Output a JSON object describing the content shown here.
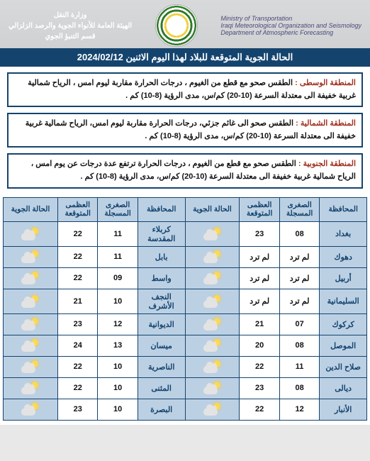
{
  "header": {
    "en_line1": "Ministry of Transportation",
    "en_line2": "Iraqi Meteorological Organization and Seismology",
    "en_line3": "Department of Atmospheric Forecasting",
    "ar_line1": "وزارة النقل",
    "ar_line2": "الهيئة العامة للأنواء الجوية والرصد الزلزالي",
    "ar_line3": "قسم التنبؤ الجوي"
  },
  "title": "الحالة الجوية المتوقعة للبلاد لهذا اليوم الاثنين  2024/02/12",
  "regions": [
    {
      "name": "المنطقة الوسطى :",
      "text": "الطقس صحو مع قطع من الغيوم ، درجات الحرارة مقاربة ليوم امس ، الرياح شمالية غربية خفيفة الى معتدلة السرعة (10-20) كم/س، مدى الرؤية (8-10) كم ."
    },
    {
      "name": "المنطقة الشمالية :",
      "text": "الطقس صحو الى غائم جزئي، درجات الحرارة مقاربة ليوم امس، الرياح شمالية غربية خفيفة الى معتدلة السرعة (10-20) كم/س، مدى الرؤية (8-10) كم ."
    },
    {
      "name": "المنطقة الجنوبية :",
      "text": "الطقس صحو مع قطع من الغيوم ، درجات الحرارة  ترتفع عدة درجات عن يوم امس ، الرياح شمالية غربية خفيفة الى معتدلة السرعة (10-20) كم/س، مدى الرؤية (8-10) كم ."
    }
  ],
  "table": {
    "headers": {
      "prov": "المحافظة",
      "min": "الصغرى المسجلة",
      "max": "العظمى المتوقعة",
      "cond": "الحالة الجوية"
    },
    "rowsA": [
      {
        "prov": "بغداد",
        "min": "08",
        "max": "23",
        "cond": "icon"
      },
      {
        "prov": "دهوك",
        "min": "لم ترد",
        "max": "لم ترد",
        "cond": "icon"
      },
      {
        "prov": "أربيل",
        "min": "لم ترد",
        "max": "لم ترد",
        "cond": "icon"
      },
      {
        "prov": "السليمانية",
        "min": "لم ترد",
        "max": "لم ترد",
        "cond": "icon"
      },
      {
        "prov": "كركوك",
        "min": "07",
        "max": "21",
        "cond": "icon"
      },
      {
        "prov": "الموصل",
        "min": "08",
        "max": "20",
        "cond": "icon"
      },
      {
        "prov": "صلاح الدين",
        "min": "11",
        "max": "22",
        "cond": "icon"
      },
      {
        "prov": "ديالى",
        "min": "08",
        "max": "23",
        "cond": "icon"
      },
      {
        "prov": "الأنبار",
        "min": "12",
        "max": "22",
        "cond": "icon"
      }
    ],
    "rowsB": [
      {
        "prov": "كربلاء المقدسة",
        "min": "11",
        "max": "22",
        "cond": "icon"
      },
      {
        "prov": "بابل",
        "min": "11",
        "max": "22",
        "cond": "icon"
      },
      {
        "prov": "واسط",
        "min": "09",
        "max": "22",
        "cond": "icon"
      },
      {
        "prov": "النجف الأشرف",
        "min": "10",
        "max": "21",
        "cond": "icon"
      },
      {
        "prov": "الديوانية",
        "min": "12",
        "max": "23",
        "cond": "icon"
      },
      {
        "prov": "ميسان",
        "min": "13",
        "max": "24",
        "cond": "icon"
      },
      {
        "prov": "الناصرية",
        "min": "10",
        "max": "22",
        "cond": "icon"
      },
      {
        "prov": "المثنى",
        "min": "10",
        "max": "22",
        "cond": "icon"
      },
      {
        "prov": "البصرة",
        "min": "10",
        "max": "23",
        "cond": "icon"
      }
    ]
  },
  "colors": {
    "navy": "#14446e",
    "header_cell": "#bcd0e4",
    "region_name": "#a03020"
  }
}
